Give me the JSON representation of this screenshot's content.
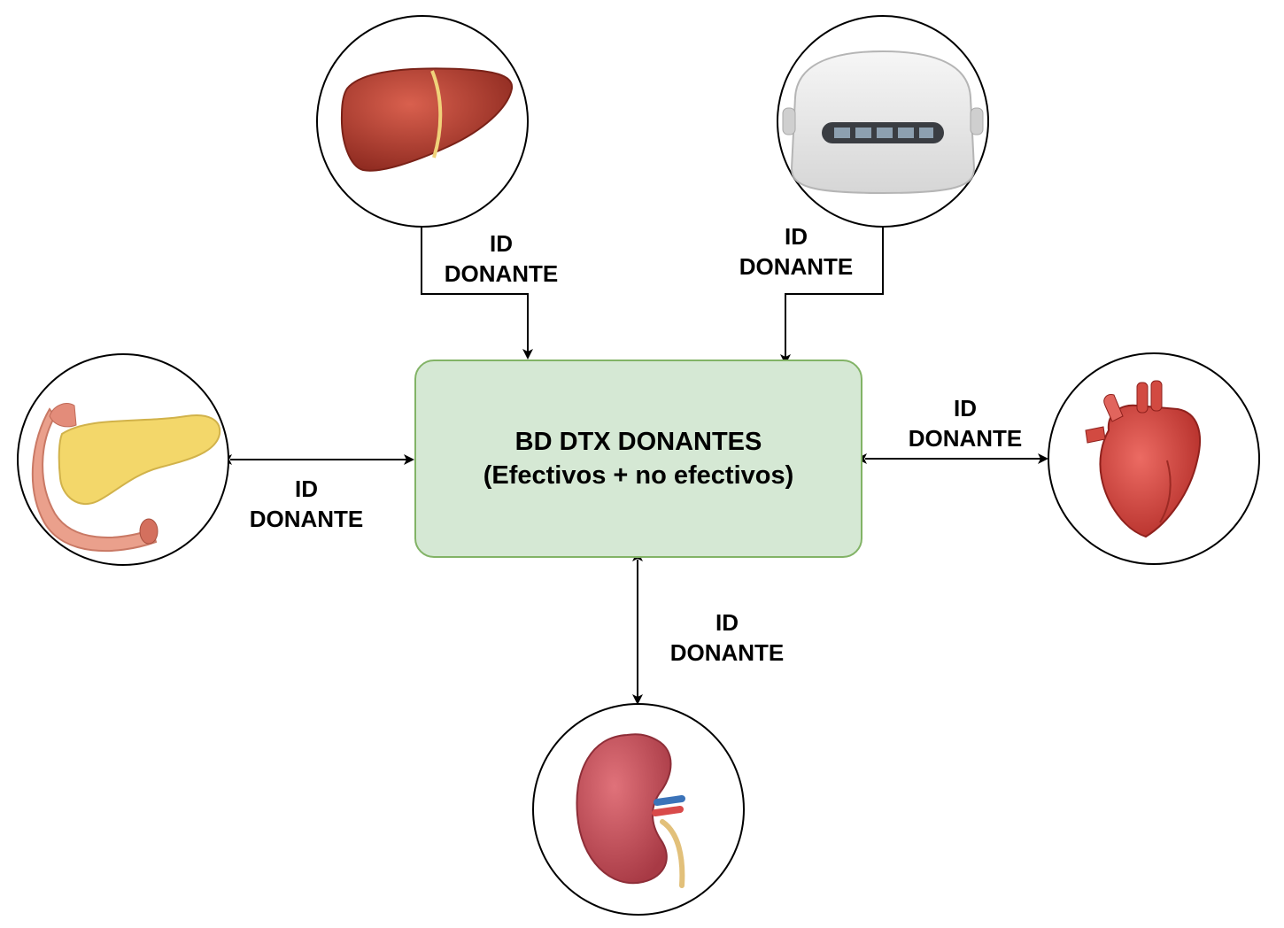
{
  "hub": {
    "line1": "BD DTX DONANTES",
    "line2": "(Efectivos + no efectivos)"
  },
  "nodes": [
    {
      "id": "liver",
      "icon": "liver-icon"
    },
    {
      "id": "perfusion-device",
      "icon": "perfusion-machine-icon"
    },
    {
      "id": "pancreas",
      "icon": "pancreas-icon"
    },
    {
      "id": "heart",
      "icon": "heart-icon"
    },
    {
      "id": "kidney",
      "icon": "kidney-icon"
    }
  ],
  "edges": {
    "liver": {
      "line1": "ID",
      "line2": "DONANTE",
      "direction": "to-hub"
    },
    "device": {
      "line1": "ID",
      "line2": "DONANTE",
      "direction": "to-hub"
    },
    "pancreas": {
      "line1": "ID",
      "line2": "DONANTE",
      "direction": "bidirectional"
    },
    "heart": {
      "line1": "ID",
      "line2": "DONANTE",
      "direction": "bidirectional"
    },
    "kidney": {
      "line1": "ID",
      "line2": "DONANTE",
      "direction": "bidirectional"
    }
  },
  "colors": {
    "hub_fill": "#d5e8d4",
    "hub_border": "#82b366",
    "organ_red": "#c0392b",
    "pancreas_yellow": "#f3d76a"
  }
}
